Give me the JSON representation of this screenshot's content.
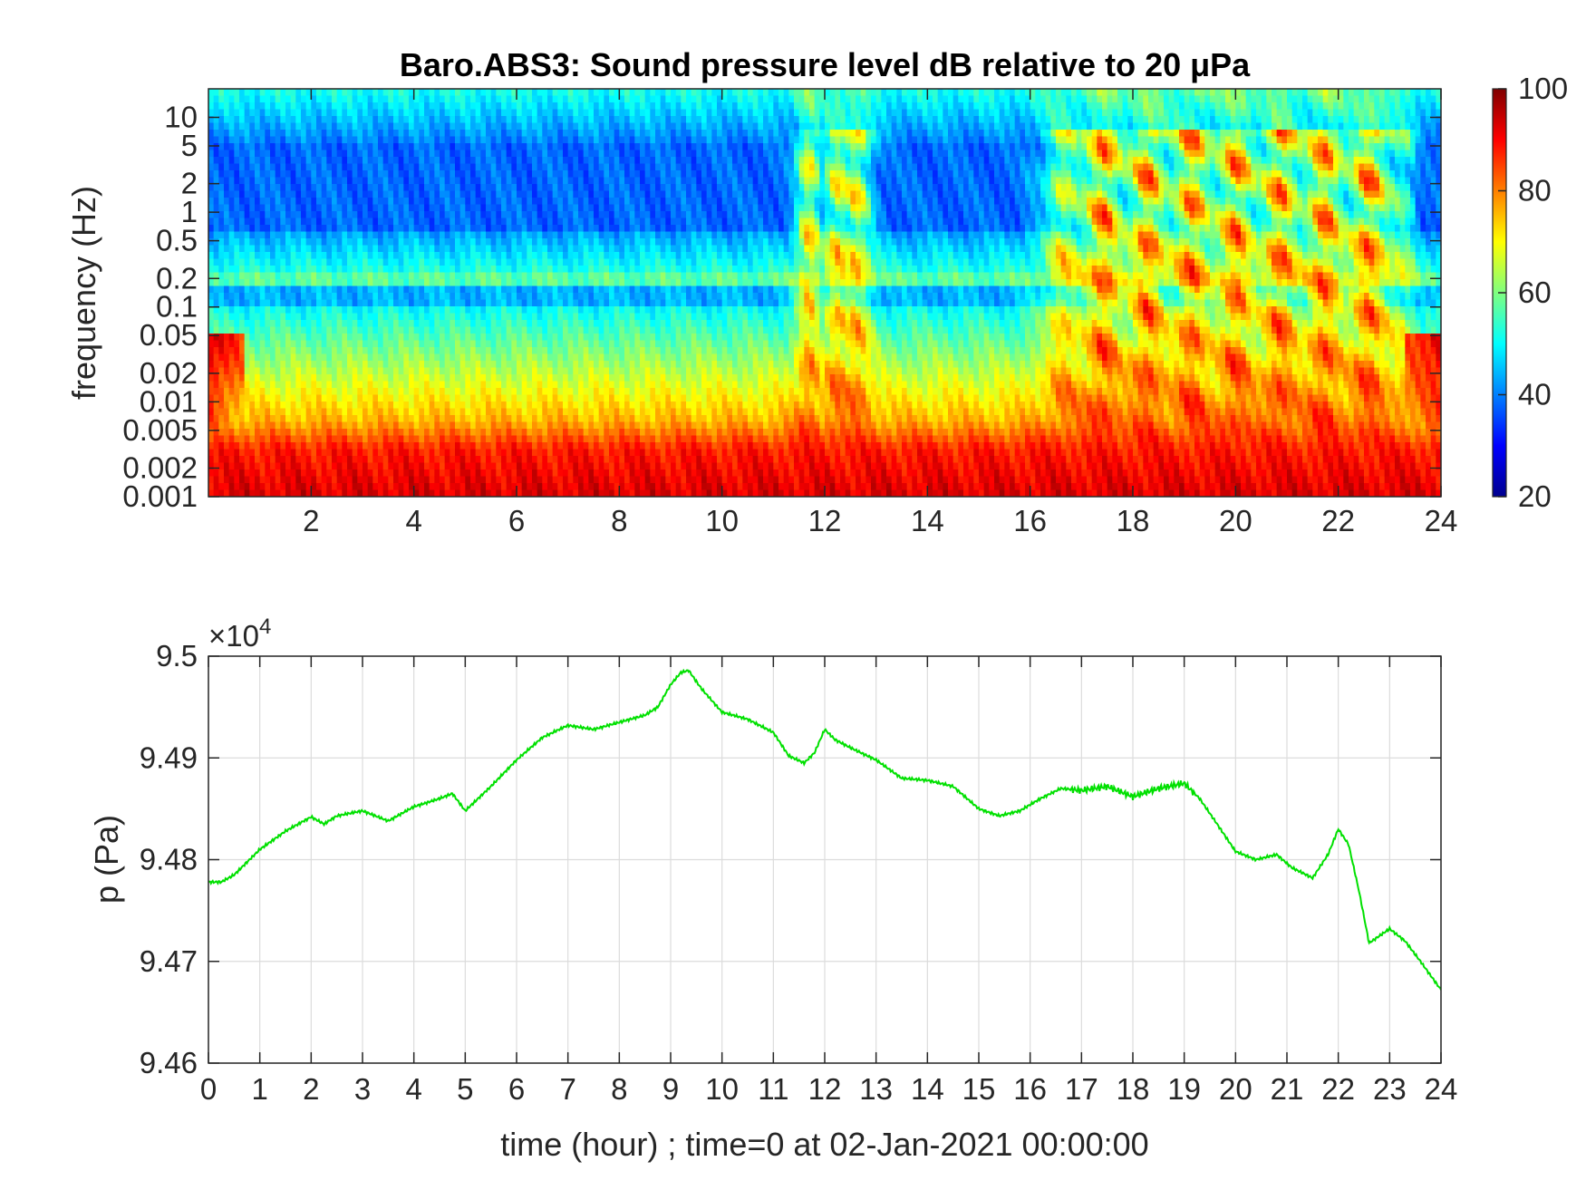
{
  "chart_data": [
    {
      "type": "heatmap",
      "title": "Baro.ABS3: Sound pressure level dB relative to 20 μPa",
      "xlabel": "",
      "ylabel": "frequency (Hz)",
      "y_scale": "log",
      "xlim": [
        0,
        24
      ],
      "ylim": [
        0.001,
        20
      ],
      "x_ticks": [
        "2",
        "4",
        "6",
        "8",
        "10",
        "12",
        "14",
        "16",
        "18",
        "20",
        "22",
        "24"
      ],
      "y_ticks": [
        "0.001",
        "0.002",
        "0.005",
        "0.01",
        "0.02",
        "0.05",
        "0.1",
        "0.2",
        "0.5",
        "1",
        "2",
        "5",
        "10"
      ],
      "colorbar": {
        "min": 20,
        "max": 100,
        "ticks": [
          "20",
          "40",
          "60",
          "80",
          "100"
        ],
        "colormap": "jet"
      },
      "z_description": "Low frequencies (<0.005 Hz) ~85-95 dB throughout; 1-5 Hz band ~35-40 dB; 0.2 Hz band ~55-60 dB; broadband events reaching 75-90 dB around hours 11.5-12.8 and 15.8-23.5",
      "grid": false
    },
    {
      "type": "line",
      "title": "",
      "xlabel": "time (hour) ; time=0 at 02-Jan-2021 00:00:00",
      "ylabel": "p (Pa)",
      "y_exponent_label": "×10",
      "y_exponent_power": "4",
      "xlim": [
        0,
        24
      ],
      "ylim": [
        94600,
        95000
      ],
      "x_ticks": [
        "0",
        "1",
        "2",
        "3",
        "4",
        "5",
        "6",
        "7",
        "8",
        "9",
        "10",
        "11",
        "12",
        "13",
        "14",
        "15",
        "16",
        "17",
        "18",
        "19",
        "20",
        "21",
        "22",
        "23",
        "24"
      ],
      "y_ticks": [
        "9.46",
        "9.47",
        "9.48",
        "9.49",
        "9.5"
      ],
      "grid": true,
      "line_color": "#00e000",
      "series": [
        {
          "x": [
            0,
            0.25,
            0.5,
            1,
            1.5,
            2,
            2.25,
            2.5,
            3,
            3.5,
            4,
            4.5,
            4.75,
            5,
            5.5,
            6,
            6.5,
            7,
            7.5,
            8,
            8.5,
            8.75,
            9,
            9.2,
            9.35,
            9.6,
            10,
            10.5,
            11,
            11.3,
            11.6,
            11.8,
            12,
            12.2,
            12.5,
            13,
            13.5,
            14,
            14.5,
            15,
            15.4,
            15.8,
            16.2,
            16.6,
            17,
            17.5,
            18,
            18.5,
            19,
            19.3,
            19.6,
            20,
            20.4,
            20.8,
            21.1,
            21.5,
            21.8,
            22,
            22.2,
            22.4,
            22.6,
            23,
            23.3,
            23.6,
            24
          ],
          "values": [
            94778,
            94778,
            94785,
            94810,
            94828,
            94842,
            94835,
            94843,
            94848,
            94838,
            94852,
            94860,
            94865,
            94848,
            94872,
            94898,
            94920,
            94932,
            94928,
            94935,
            94942,
            94950,
            94972,
            94984,
            94986,
            94968,
            94945,
            94938,
            94925,
            94902,
            94895,
            94905,
            94928,
            94918,
            94910,
            94898,
            94880,
            94878,
            94872,
            94850,
            94843,
            94848,
            94860,
            94870,
            94868,
            94872,
            94862,
            94870,
            94875,
            94860,
            94838,
            94808,
            94800,
            94805,
            94792,
            94782,
            94805,
            94830,
            94815,
            94770,
            94718,
            94732,
            94720,
            94700,
            94672
          ]
        }
      ]
    }
  ]
}
